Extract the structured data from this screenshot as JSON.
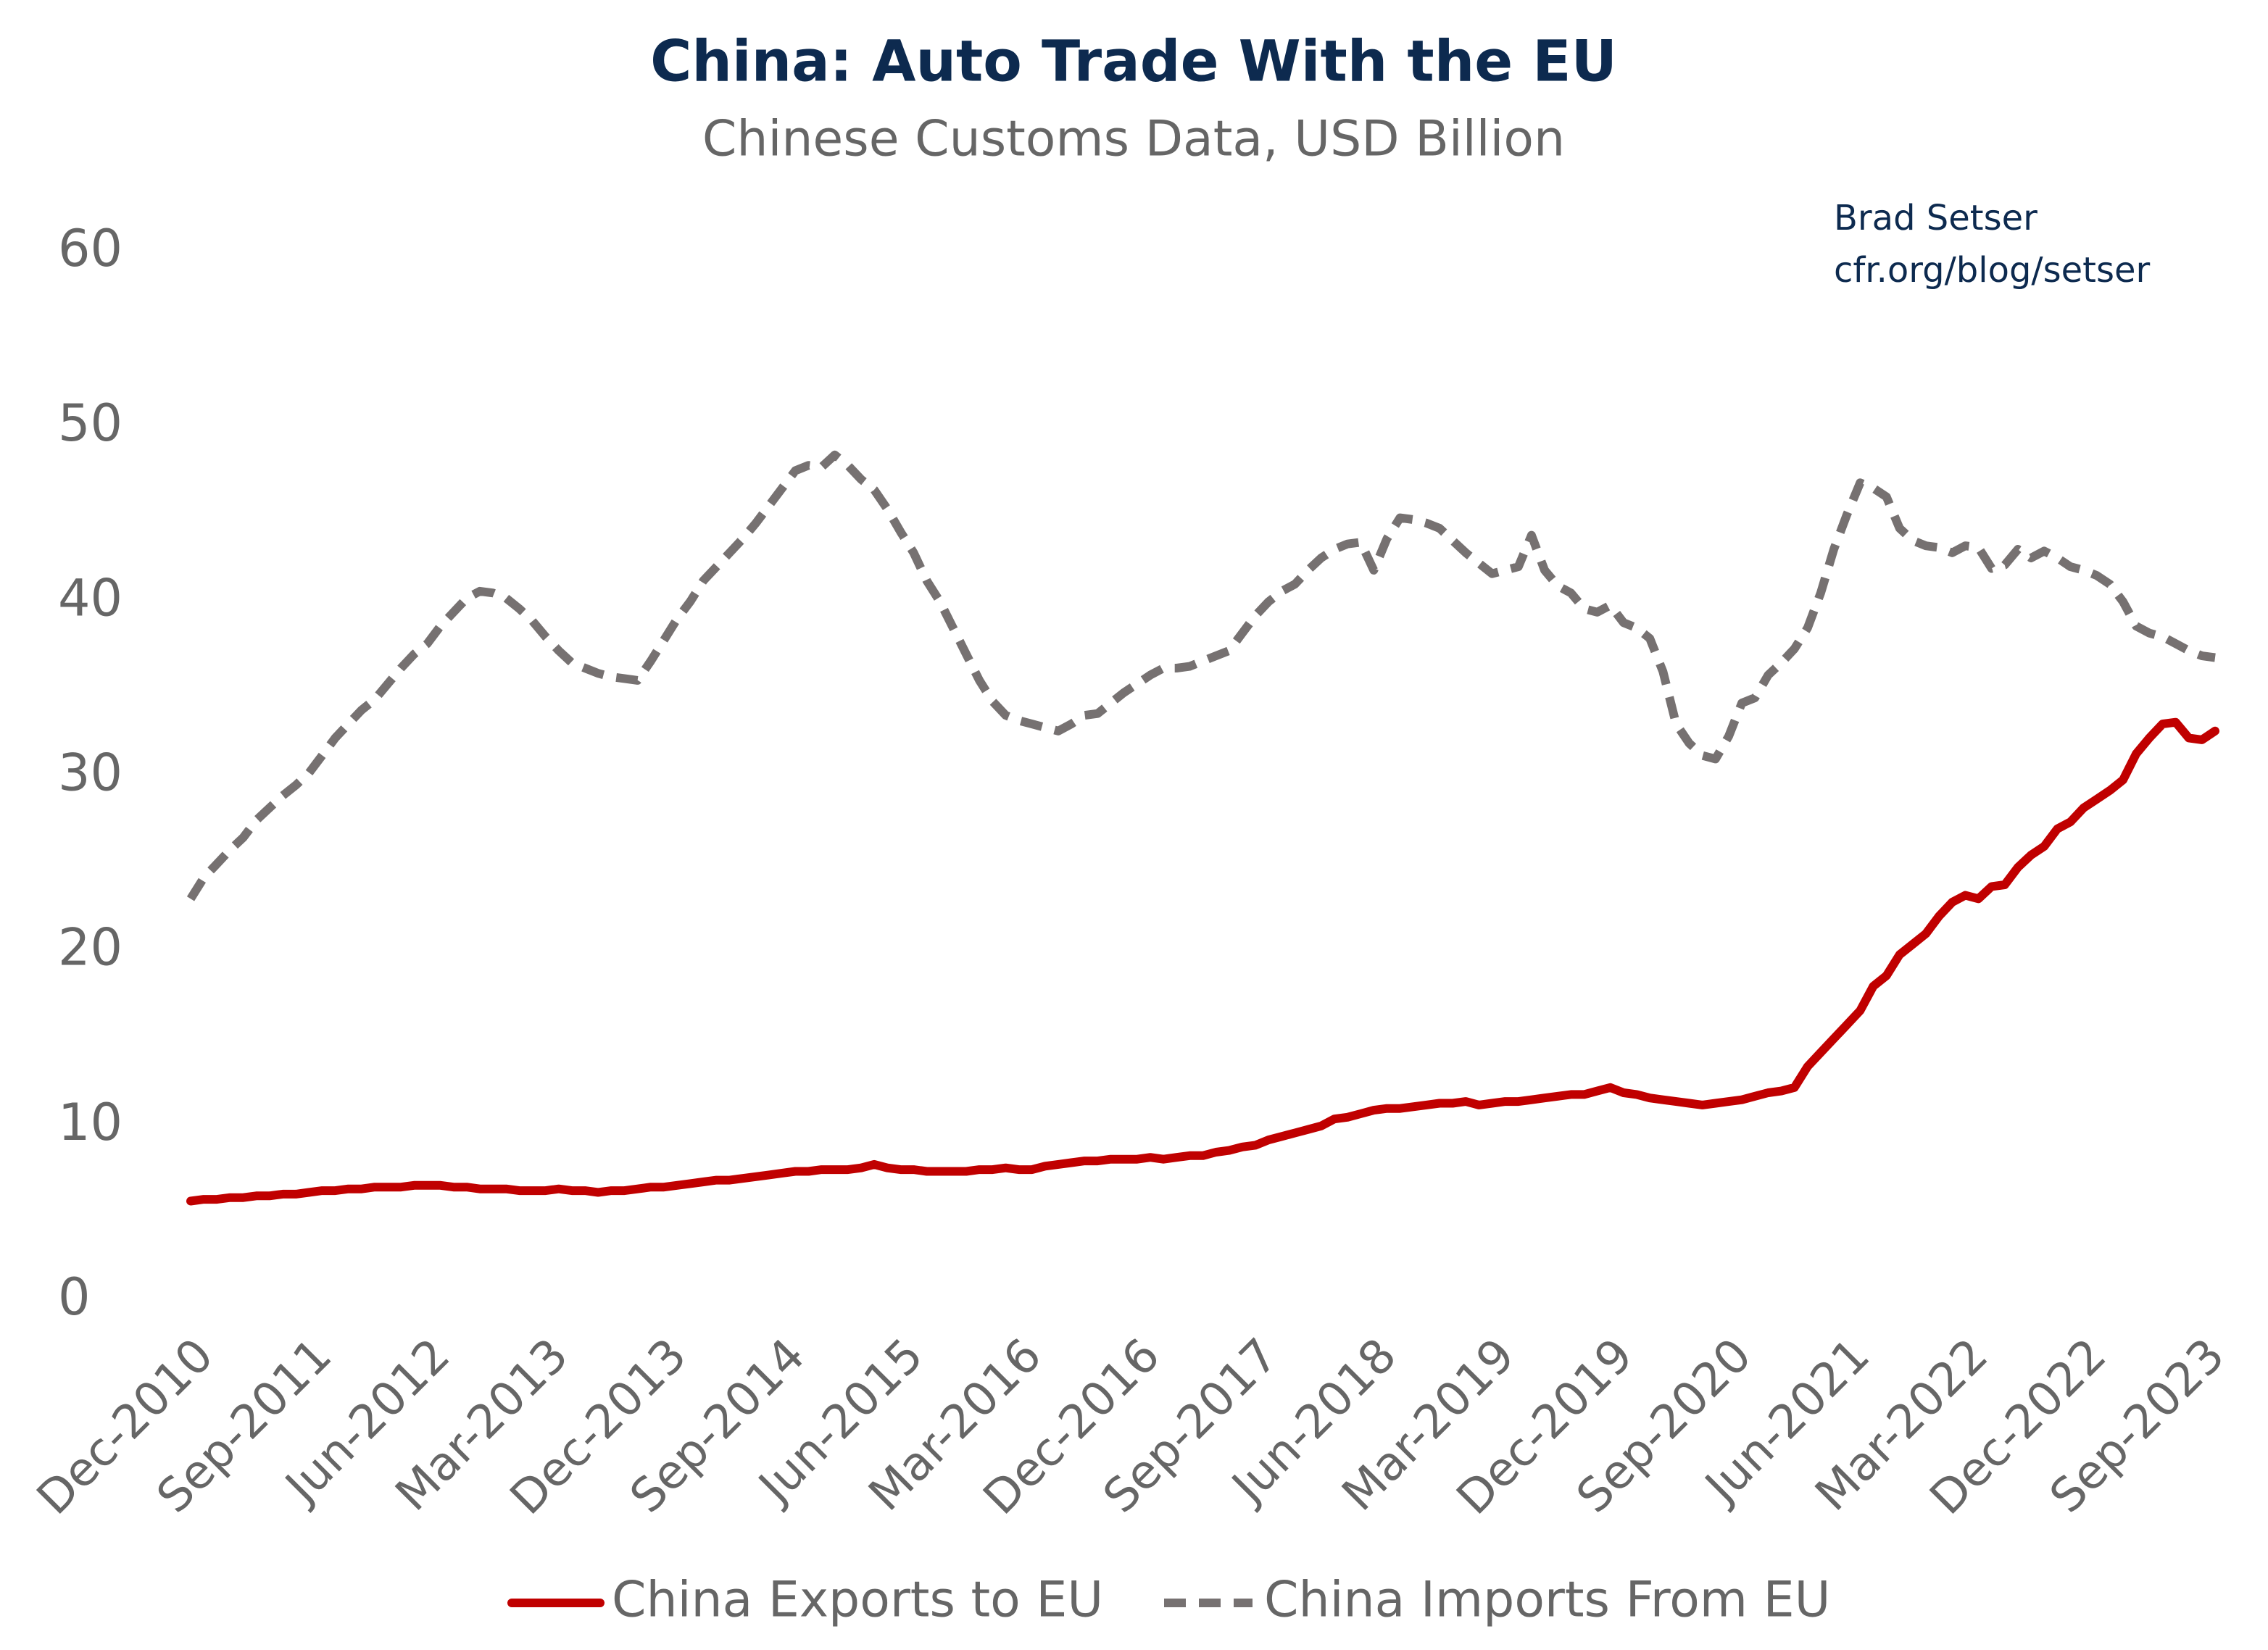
{
  "chart_data": {
    "type": "line",
    "title": "China: Auto Trade With the EU",
    "subtitle": "Chinese Customs Data, USD Billion",
    "annotation": [
      "Brad Setser",
      "cfr.org/blog/setser"
    ],
    "categories": [
      "Dec-2010",
      null,
      null,
      null,
      null,
      null,
      null,
      null,
      null,
      "Sep-2011",
      null,
      null,
      null,
      null,
      null,
      null,
      null,
      null,
      "Jun-2012",
      null,
      null,
      null,
      null,
      null,
      null,
      null,
      null,
      "Mar-2013",
      null,
      null,
      null,
      null,
      null,
      null,
      null,
      null,
      "Dec-2013",
      null,
      null,
      null,
      null,
      null,
      null,
      null,
      null,
      "Sep-2014",
      null,
      null,
      null,
      null,
      null,
      null,
      null,
      null,
      "Jun-2015",
      null,
      null,
      null,
      null,
      null,
      null,
      null,
      null,
      "Mar-2016",
      null,
      null,
      null,
      null,
      null,
      null,
      null,
      null,
      "Dec-2016",
      null,
      null,
      null,
      null,
      null,
      null,
      null,
      null,
      "Sep-2017",
      null,
      null,
      null,
      null,
      null,
      null,
      null,
      null,
      "Jun-2018",
      null,
      null,
      null,
      null,
      null,
      null,
      null,
      null,
      "Mar-2019",
      null,
      null,
      null,
      null,
      null,
      null,
      null,
      null,
      "Dec-2019",
      null,
      null,
      null,
      null,
      null,
      null,
      null,
      null,
      "Sep-2020",
      null,
      null,
      null,
      null,
      null,
      null,
      null,
      null,
      "Jun-2021",
      null,
      null,
      null,
      null,
      null,
      null,
      null,
      null,
      "Mar-2022",
      null,
      null,
      null,
      null,
      null,
      null,
      null,
      null,
      "Dec-2022",
      null,
      null,
      null,
      null,
      null,
      null,
      null,
      null,
      "Sep-2023",
      null
    ],
    "series": [
      {
        "name": "China Exports to EU",
        "color": "#c00000",
        "dash": false,
        "values": [
          5.7,
          5.8,
          5.8,
          5.9,
          5.9,
          6.0,
          6.0,
          6.1,
          6.1,
          6.2,
          6.3,
          6.3,
          6.4,
          6.4,
          6.5,
          6.5,
          6.5,
          6.6,
          6.6,
          6.6,
          6.5,
          6.5,
          6.4,
          6.4,
          6.4,
          6.3,
          6.3,
          6.3,
          6.4,
          6.3,
          6.3,
          6.2,
          6.3,
          6.3,
          6.4,
          6.5,
          6.5,
          6.6,
          6.7,
          6.8,
          6.9,
          6.9,
          7.0,
          7.1,
          7.2,
          7.3,
          7.4,
          7.4,
          7.5,
          7.5,
          7.5,
          7.6,
          7.8,
          7.6,
          7.5,
          7.5,
          7.4,
          7.4,
          7.4,
          7.4,
          7.5,
          7.5,
          7.6,
          7.5,
          7.5,
          7.7,
          7.8,
          7.9,
          8.0,
          8.0,
          8.1,
          8.1,
          8.1,
          8.2,
          8.1,
          8.2,
          8.3,
          8.3,
          8.5,
          8.6,
          8.8,
          8.9,
          9.2,
          9.4,
          9.6,
          9.8,
          10.0,
          10.4,
          10.5,
          10.7,
          10.9,
          11.0,
          11.0,
          11.1,
          11.2,
          11.3,
          11.3,
          11.4,
          11.2,
          11.3,
          11.4,
          11.4,
          11.5,
          11.6,
          11.7,
          11.8,
          11.8,
          12.0,
          12.2,
          11.9,
          11.8,
          11.6,
          11.5,
          11.4,
          11.3,
          11.2,
          11.3,
          11.4,
          11.5,
          11.7,
          11.9,
          12.0,
          12.2,
          13.4,
          14.2,
          15.0,
          15.8,
          16.6,
          18.0,
          18.6,
          19.8,
          20.4,
          21.0,
          22.0,
          22.8,
          23.2,
          23.0,
          23.7,
          23.8,
          24.8,
          25.5,
          26.0,
          27.0,
          27.4,
          28.2,
          28.7,
          29.2,
          29.8,
          31.3,
          32.2,
          33.0,
          33.1,
          32.2,
          32.1,
          32.6
        ]
      },
      {
        "name": "China Imports From EU",
        "color": "#767171",
        "dash": true,
        "values": [
          23.0,
          24.2,
          25.0,
          25.8,
          26.5,
          27.5,
          28.2,
          28.9,
          29.5,
          30.2,
          31.2,
          32.2,
          33.0,
          33.8,
          34.4,
          35.3,
          36.2,
          37.0,
          37.6,
          38.6,
          39.4,
          40.2,
          40.6,
          40.5,
          40.2,
          39.6,
          38.9,
          38.0,
          37.2,
          36.5,
          36.2,
          35.9,
          35.7,
          35.6,
          35.5,
          36.6,
          37.8,
          39.0,
          40.0,
          41.2,
          42.0,
          42.8,
          43.6,
          44.5,
          45.5,
          46.5,
          47.5,
          47.8,
          47.7,
          48.4,
          47.8,
          47.0,
          46.4,
          45.3,
          44.0,
          42.8,
          41.2,
          40.0,
          38.5,
          37.0,
          35.5,
          34.3,
          33.5,
          33.2,
          33.0,
          32.8,
          32.6,
          33.0,
          33.5,
          33.6,
          34.2,
          34.8,
          35.3,
          35.8,
          36.2,
          36.2,
          36.3,
          36.6,
          36.9,
          37.2,
          38.2,
          39.2,
          40.0,
          40.6,
          41.0,
          41.8,
          42.5,
          43.0,
          43.3,
          43.4,
          41.8,
          43.6,
          44.8,
          44.7,
          44.5,
          44.2,
          43.5,
          42.8,
          42.2,
          41.6,
          41.8,
          42.0,
          43.8,
          41.8,
          40.9,
          40.5,
          39.6,
          39.4,
          39.8,
          38.8,
          38.5,
          37.9,
          36.0,
          33.0,
          31.9,
          31.2,
          31.0,
          32.3,
          34.2,
          34.5,
          35.8,
          36.5,
          37.3,
          38.5,
          40.5,
          43.0,
          45.0,
          46.8,
          46.5,
          46.0,
          44.2,
          43.5,
          43.2,
          43.1,
          42.8,
          43.2,
          43.1,
          41.9,
          42.1,
          43.0,
          42.5,
          42.9,
          42.5,
          42.0,
          41.8,
          41.5,
          41.0,
          40.0,
          38.6,
          38.2,
          38.0,
          37.6,
          37.2,
          36.9,
          36.8
        ]
      }
    ],
    "ylim": [
      0,
      60
    ],
    "yticks": [
      0,
      10,
      20,
      30,
      40,
      50,
      60
    ],
    "grid": false,
    "legend": "bottom"
  }
}
